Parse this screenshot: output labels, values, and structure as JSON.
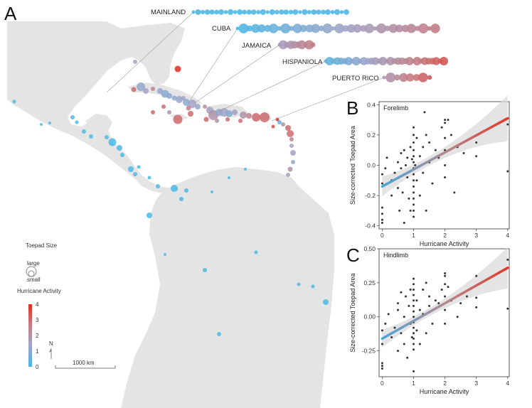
{
  "panels": {
    "a": "A",
    "b": "B",
    "c": "C"
  },
  "islands": {
    "mainland": "MAINLAND",
    "cuba": "CUBA",
    "jamaica": "JAMAICA",
    "hispaniola": "HISPANIOLA",
    "puerto_rico": "PUERTO RICO"
  },
  "legend": {
    "toepad_title": "Toepad Size",
    "toepad_large": "large",
    "toepad_small": "small",
    "hurricane_title": "Hurricane Activity",
    "hurricane_ticks": [
      "0",
      "1",
      "2",
      "3",
      "4"
    ],
    "north": "N",
    "scale_label": "1000 km"
  },
  "colors": {
    "low": "#4bb8e6",
    "mid": "#9aa3c9",
    "high": "#e2453a",
    "land": "#e4e4e4",
    "point": "#333333"
  },
  "chart_data": [
    {
      "type": "scatter",
      "title": "Forelimb",
      "xlabel": "Hurricane Activity",
      "ylabel": "Size-corrected Toepad Area",
      "xlim": [
        -0.1,
        4.05
      ],
      "ylim": [
        -0.42,
        0.42
      ],
      "xticks": [
        "0",
        "1",
        "2",
        "3",
        "4"
      ],
      "yticks": [
        "-0.4",
        "-0.2",
        "0.0",
        "0.2",
        "0.4"
      ],
      "ytick_values": [
        -0.4,
        -0.2,
        0.0,
        0.2,
        0.4
      ],
      "fit": {
        "x": [
          0,
          4
        ],
        "y": [
          -0.14,
          0.31
        ]
      },
      "points": [
        [
          0,
          -0.06
        ],
        [
          0,
          -0.12
        ],
        [
          0,
          -0.28
        ],
        [
          0,
          -0.32
        ],
        [
          0,
          -0.36
        ],
        [
          0,
          -0.38
        ],
        [
          0.1,
          -0.02
        ],
        [
          0.15,
          0.05
        ],
        [
          0.3,
          -0.2
        ],
        [
          0.3,
          -0.1
        ],
        [
          0.4,
          -0.05
        ],
        [
          0.5,
          0.02
        ],
        [
          0.5,
          -0.15
        ],
        [
          0.55,
          -0.3
        ],
        [
          0.6,
          0.08
        ],
        [
          0.6,
          -0.02
        ],
        [
          0.65,
          -0.18
        ],
        [
          0.7,
          0.1
        ],
        [
          0.7,
          -0.38
        ],
        [
          0.75,
          0.0
        ],
        [
          0.8,
          -0.08
        ],
        [
          0.8,
          0.05
        ],
        [
          0.85,
          -0.22
        ],
        [
          0.9,
          0.12
        ],
        [
          0.9,
          -0.3
        ],
        [
          0.95,
          0.04
        ],
        [
          1,
          0.25
        ],
        [
          1,
          0.2
        ],
        [
          1,
          0.15
        ],
        [
          1,
          0.1
        ],
        [
          1,
          0.06
        ],
        [
          1,
          0.02
        ],
        [
          1,
          -0.02
        ],
        [
          1,
          -0.06
        ],
        [
          1,
          -0.1
        ],
        [
          1,
          -0.14
        ],
        [
          1,
          -0.18
        ],
        [
          1,
          -0.22
        ],
        [
          1,
          -0.26
        ],
        [
          1,
          -0.3
        ],
        [
          1,
          -0.34
        ],
        [
          1.05,
          0.0
        ],
        [
          1.1,
          0.18
        ],
        [
          1.1,
          -0.1
        ],
        [
          1.2,
          0.06
        ],
        [
          1.2,
          -0.2
        ],
        [
          1.3,
          0.12
        ],
        [
          1.3,
          -0.05
        ],
        [
          1.35,
          0.35
        ],
        [
          1.4,
          0.2
        ],
        [
          1.4,
          -0.3
        ],
        [
          1.5,
          0.02
        ],
        [
          1.5,
          0.15
        ],
        [
          1.6,
          -0.12
        ],
        [
          1.7,
          0.1
        ],
        [
          1.8,
          0.05
        ],
        [
          1.9,
          0.25
        ],
        [
          2,
          0.3
        ],
        [
          2,
          0.28
        ],
        [
          2,
          0.18
        ],
        [
          2,
          0.1
        ],
        [
          2,
          0.0
        ],
        [
          2,
          -0.08
        ],
        [
          2.1,
          0.3
        ],
        [
          2.2,
          0.2
        ],
        [
          2.3,
          -0.18
        ],
        [
          2.4,
          0.12
        ],
        [
          2.6,
          0.08
        ],
        [
          3,
          0.15
        ],
        [
          3,
          0.06
        ],
        [
          4,
          0.27
        ],
        [
          4,
          -0.04
        ]
      ]
    },
    {
      "type": "scatter",
      "title": "Hindlimb",
      "xlabel": "Hurricane Activity",
      "ylabel": "Size-corrected Toepad Area",
      "xlim": [
        -0.1,
        4.05
      ],
      "ylim": [
        -0.44,
        0.5
      ],
      "xticks": [
        "0",
        "1",
        "2",
        "3",
        "4"
      ],
      "yticks": [
        "-0.25",
        "0.00",
        "0.25",
        "0.50"
      ],
      "ytick_values": [
        -0.25,
        0.0,
        0.25,
        0.5
      ],
      "fit": {
        "x": [
          0,
          4
        ],
        "y": [
          -0.16,
          0.36
        ]
      },
      "points": [
        [
          0,
          -0.1
        ],
        [
          0,
          -0.2
        ],
        [
          0,
          -0.34
        ],
        [
          0,
          -0.36
        ],
        [
          0,
          -0.38
        ],
        [
          0.1,
          -0.05
        ],
        [
          0.2,
          0.02
        ],
        [
          0.3,
          -0.15
        ],
        [
          0.4,
          -0.08
        ],
        [
          0.5,
          0.05
        ],
        [
          0.5,
          -0.25
        ],
        [
          0.5,
          0.1
        ],
        [
          0.6,
          -0.12
        ],
        [
          0.6,
          0.18
        ],
        [
          0.7,
          -0.2
        ],
        [
          0.7,
          0.0
        ],
        [
          0.75,
          0.15
        ],
        [
          0.8,
          -0.3
        ],
        [
          0.85,
          0.08
        ],
        [
          0.9,
          -0.05
        ],
        [
          0.9,
          0.2
        ],
        [
          0.95,
          -0.15
        ],
        [
          1,
          0.28
        ],
        [
          1,
          0.24
        ],
        [
          1,
          0.2
        ],
        [
          1,
          0.16
        ],
        [
          1,
          0.12
        ],
        [
          1,
          0.08
        ],
        [
          1,
          0.04
        ],
        [
          1,
          0.0
        ],
        [
          1,
          -0.04
        ],
        [
          1,
          -0.08
        ],
        [
          1,
          -0.12
        ],
        [
          1,
          -0.16
        ],
        [
          1,
          -0.2
        ],
        [
          1,
          -0.24
        ],
        [
          1,
          -0.4
        ],
        [
          1.1,
          0.12
        ],
        [
          1.1,
          -0.1
        ],
        [
          1.2,
          0.05
        ],
        [
          1.2,
          -0.2
        ],
        [
          1.3,
          0.2
        ],
        [
          1.3,
          0.02
        ],
        [
          1.4,
          0.25
        ],
        [
          1.4,
          -0.12
        ],
        [
          1.5,
          0.08
        ],
        [
          1.5,
          0.15
        ],
        [
          1.6,
          -0.05
        ],
        [
          1.7,
          0.12
        ],
        [
          1.8,
          0.1
        ],
        [
          1.9,
          0.2
        ],
        [
          2,
          0.32
        ],
        [
          2,
          0.3
        ],
        [
          2,
          0.24
        ],
        [
          2,
          0.15
        ],
        [
          2,
          0.05
        ],
        [
          2,
          -0.05
        ],
        [
          2.1,
          0.22
        ],
        [
          2.2,
          0.12
        ],
        [
          2.4,
          0.0
        ],
        [
          2.5,
          0.1
        ],
        [
          2.7,
          0.15
        ],
        [
          3,
          0.3
        ],
        [
          3,
          0.14
        ],
        [
          3,
          0.07
        ],
        [
          4,
          0.42
        ],
        [
          4,
          0.06
        ]
      ]
    }
  ]
}
